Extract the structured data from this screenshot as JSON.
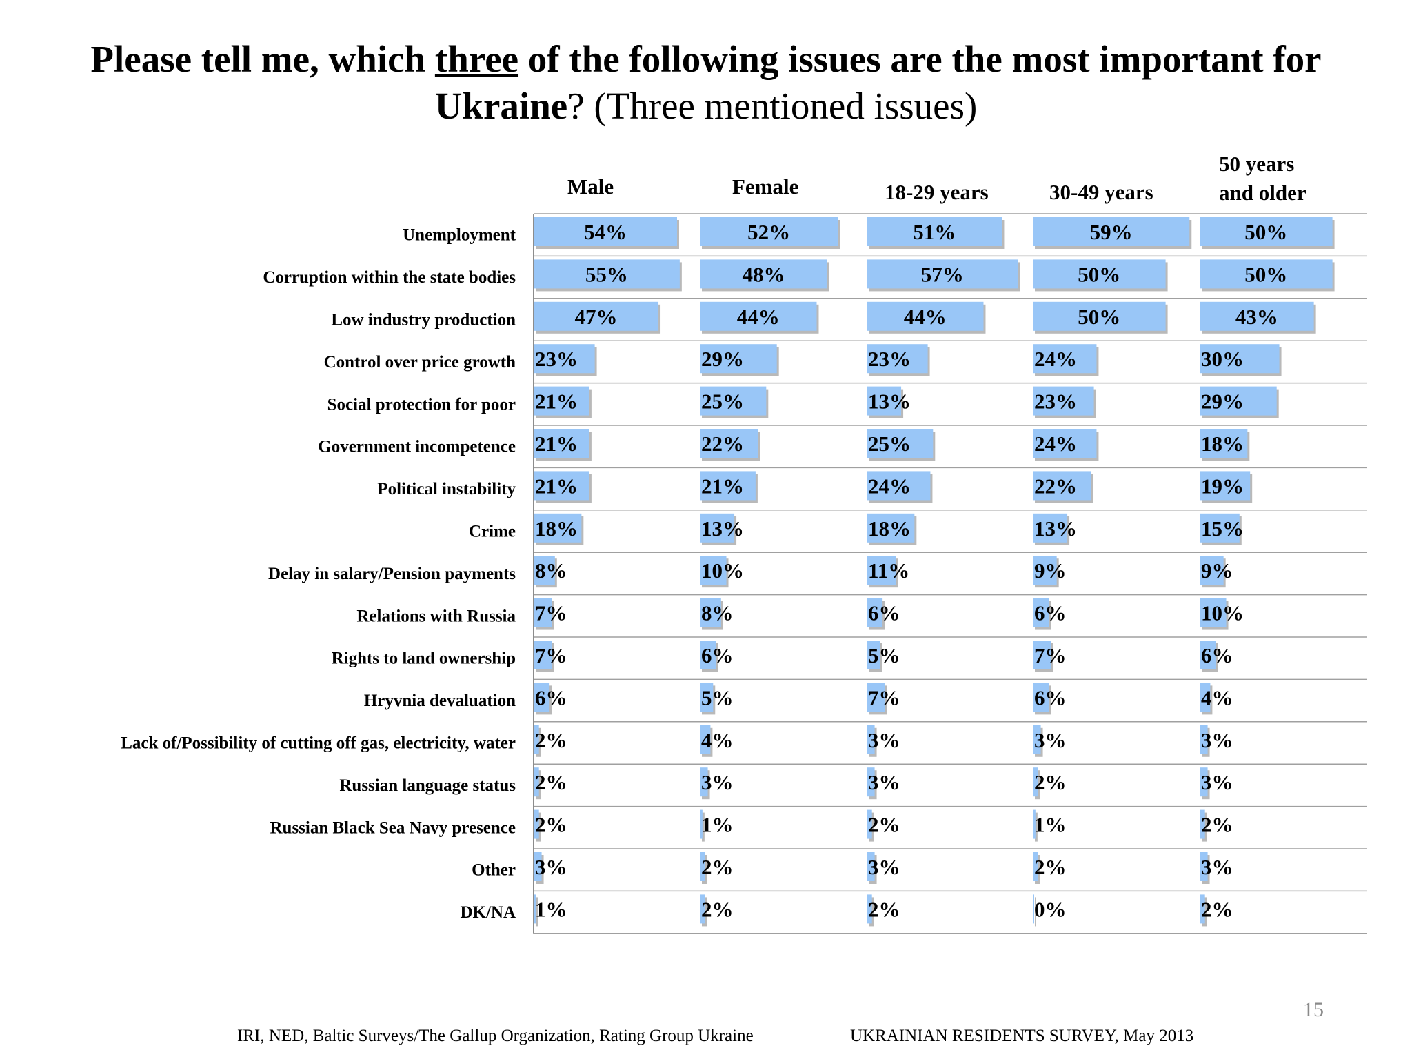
{
  "title": {
    "line1_part1": "Please tell me, which ",
    "line1_underlined": "three",
    "line1_part2": " of the following issues are the most important for",
    "line2_bold": "Ukraine",
    "line2_rest": "? (Three mentioned issues)"
  },
  "chart_data": {
    "type": "bar",
    "orientation": "horizontal",
    "layout": "small-multiples",
    "unit": "%",
    "categories": [
      "Unemployment",
      "Corruption within the state bodies",
      "Low industry production",
      "Control over price growth",
      "Social protection for poor",
      "Government incompetence",
      "Political instability",
      "Crime",
      "Delay in salary/Pension payments",
      "Relations with Russia",
      "Rights to land ownership",
      "Hryvnia devaluation",
      "Lack of/Possibility of cutting off gas, electricity, water",
      "Russian language status",
      "Russian Black Sea Navy presence",
      "Other",
      "DK/NA"
    ],
    "series": [
      {
        "name": "Male",
        "values": [
          54,
          55,
          47,
          23,
          21,
          21,
          21,
          18,
          8,
          7,
          7,
          6,
          2,
          2,
          2,
          3,
          1
        ]
      },
      {
        "name": "Female",
        "values": [
          52,
          48,
          44,
          29,
          25,
          22,
          21,
          13,
          10,
          8,
          6,
          5,
          4,
          3,
          1,
          2,
          2
        ]
      },
      {
        "name": "18-29 years",
        "values": [
          51,
          57,
          44,
          23,
          13,
          25,
          24,
          18,
          11,
          6,
          5,
          7,
          3,
          3,
          2,
          3,
          2
        ]
      },
      {
        "name": "30-49 years",
        "values": [
          59,
          50,
          50,
          24,
          23,
          24,
          22,
          13,
          9,
          6,
          7,
          6,
          3,
          2,
          1,
          2,
          0
        ]
      },
      {
        "name": "50 years and older",
        "values": [
          50,
          50,
          43,
          30,
          29,
          18,
          19,
          15,
          9,
          10,
          6,
          4,
          3,
          3,
          2,
          3,
          2
        ]
      }
    ],
    "header_labels": [
      "Male",
      "Female",
      "18-29 years",
      "30-49 years",
      "50 years",
      "and older"
    ],
    "xlim": [
      0,
      60
    ],
    "colors": {
      "bar": "#99c6f7",
      "bar_shadow": "#b9b9b9",
      "grid": "#a0a0a0",
      "axis": "#8c8c8c"
    }
  },
  "footer": {
    "left": "IRI, NED,  Baltic Surveys/The Gallup Organization, Rating Group Ukraine",
    "right": "UKRAINIAN RESIDENTS SURVEY, May  2013",
    "page_number": "15"
  }
}
